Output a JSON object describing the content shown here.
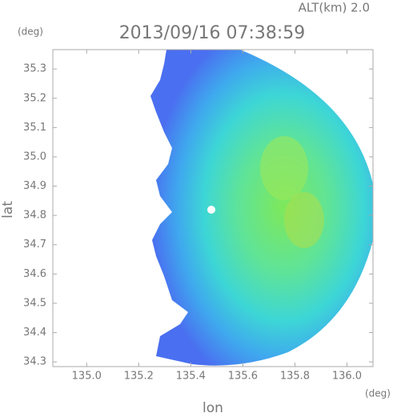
{
  "chart_data": {
    "type": "radar-map",
    "title": "2013/09/16 07:38:59",
    "altitude_label": "ALT(km)  2.0",
    "x_label": "lon",
    "y_label": "lat",
    "x_unit": "(deg)",
    "y_unit": "(deg)",
    "xlim": [
      134.87,
      136.1
    ],
    "ylim": [
      34.284,
      35.366
    ],
    "xticks": [
      {
        "value": 135,
        "label": "135.0"
      },
      135.2,
      135.4,
      135.6,
      135.8,
      {
        "value": 136,
        "label": "136.0"
      }
    ],
    "yticks": [
      34.3,
      34.4,
      34.5,
      34.6,
      34.7,
      34.8,
      34.9,
      {
        "value": 35,
        "label": "35.0"
      },
      35.1,
      35.2,
      35.3
    ]
  }
}
